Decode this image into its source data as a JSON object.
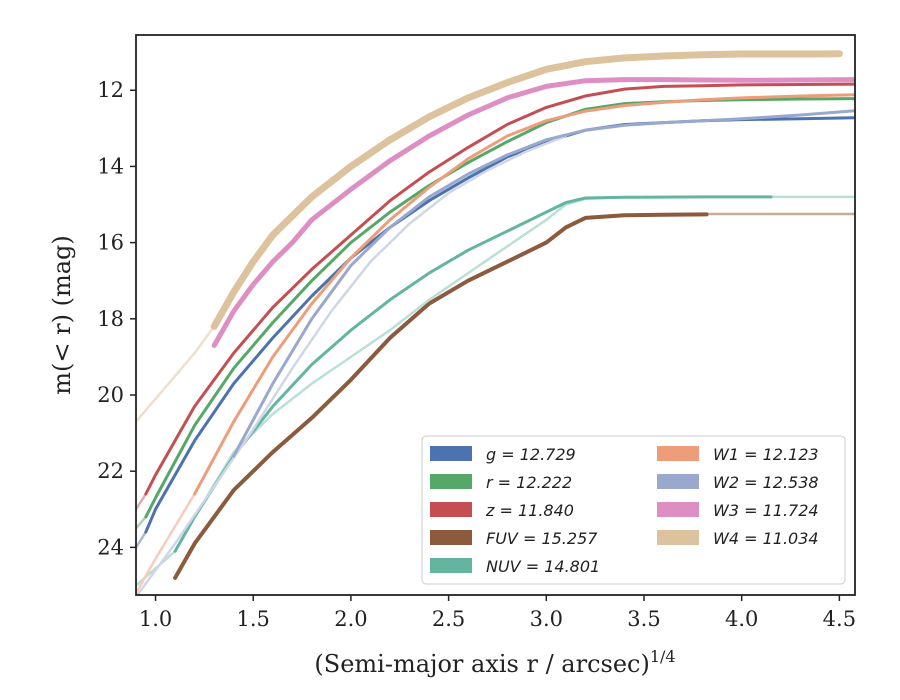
{
  "chart_data": {
    "type": "line",
    "xlabel": "(Semi-major axis r / arcsec)",
    "xlabel_sup": "1/4",
    "ylabel": "m(< r) (mag)",
    "xlim": [
      0.9,
      4.58
    ],
    "ylim": [
      25.25,
      10.55
    ],
    "y_inverted": true,
    "grid": false,
    "legend_placement": "lower-right",
    "x_ticks": [
      "1.0",
      "1.5",
      "2.0",
      "2.5",
      "3.0",
      "3.5",
      "4.0",
      "4.5"
    ],
    "y_ticks": [
      "12",
      "14",
      "16",
      "18",
      "20",
      "22",
      "24"
    ],
    "series": [
      {
        "name": "g = 12.729",
        "color": "#4c72b0",
        "faint_color": "#a9bad8",
        "width": 3,
        "faint": [
          [
            0.9,
            24.0
          ],
          [
            0.95,
            23.6
          ]
        ],
        "values": [
          [
            0.95,
            23.6
          ],
          [
            1.0,
            23.0
          ],
          [
            1.2,
            21.2
          ],
          [
            1.4,
            19.7
          ],
          [
            1.6,
            18.5
          ],
          [
            1.8,
            17.4
          ],
          [
            2.0,
            16.4
          ],
          [
            2.2,
            15.6
          ],
          [
            2.4,
            14.9
          ],
          [
            2.6,
            14.3
          ],
          [
            2.8,
            13.75
          ],
          [
            3.0,
            13.35
          ],
          [
            3.2,
            13.05
          ],
          [
            3.4,
            12.9
          ],
          [
            3.6,
            12.85
          ],
          [
            3.8,
            12.8
          ],
          [
            4.0,
            12.77
          ],
          [
            4.3,
            12.75
          ],
          [
            4.58,
            12.72
          ]
        ]
      },
      {
        "name": "r = 12.222",
        "color": "#55a868",
        "faint_color": "#aad4b4",
        "width": 3,
        "faint": [
          [
            0.9,
            23.5
          ],
          [
            0.95,
            23.2
          ]
        ],
        "values": [
          [
            0.95,
            23.2
          ],
          [
            1.0,
            22.7
          ],
          [
            1.2,
            20.8
          ],
          [
            1.4,
            19.3
          ],
          [
            1.6,
            18.1
          ],
          [
            1.8,
            17.0
          ],
          [
            2.0,
            16.0
          ],
          [
            2.2,
            15.2
          ],
          [
            2.4,
            14.5
          ],
          [
            2.6,
            13.9
          ],
          [
            2.8,
            13.35
          ],
          [
            3.0,
            12.85
          ],
          [
            3.2,
            12.5
          ],
          [
            3.4,
            12.35
          ],
          [
            3.6,
            12.3
          ],
          [
            3.8,
            12.27
          ],
          [
            4.0,
            12.25
          ],
          [
            4.3,
            12.23
          ],
          [
            4.58,
            12.22
          ]
        ]
      },
      {
        "name": "z = 11.840",
        "color": "#c44e52",
        "faint_color": "#e3a8aa",
        "width": 3,
        "faint": [
          [
            0.9,
            23.0
          ],
          [
            0.95,
            22.6
          ]
        ],
        "values": [
          [
            0.95,
            22.6
          ],
          [
            1.0,
            22.1
          ],
          [
            1.2,
            20.3
          ],
          [
            1.4,
            18.9
          ],
          [
            1.6,
            17.7
          ],
          [
            1.8,
            16.7
          ],
          [
            2.0,
            15.8
          ],
          [
            2.2,
            14.9
          ],
          [
            2.4,
            14.15
          ],
          [
            2.6,
            13.5
          ],
          [
            2.8,
            12.9
          ],
          [
            3.0,
            12.45
          ],
          [
            3.2,
            12.15
          ],
          [
            3.4,
            11.97
          ],
          [
            3.6,
            11.9
          ],
          [
            3.8,
            11.88
          ],
          [
            4.0,
            11.86
          ],
          [
            4.3,
            11.85
          ],
          [
            4.58,
            11.84
          ]
        ]
      },
      {
        "name": "FUV = 15.257",
        "color": "#8c5a3c",
        "faint_color": "#c9aa95",
        "width": 4,
        "faint": [
          [
            3.82,
            15.25
          ],
          [
            4.58,
            15.25
          ]
        ],
        "values": [
          [
            1.1,
            24.8
          ],
          [
            1.2,
            23.9
          ],
          [
            1.4,
            22.5
          ],
          [
            1.6,
            21.5
          ],
          [
            1.8,
            20.6
          ],
          [
            2.0,
            19.6
          ],
          [
            2.2,
            18.5
          ],
          [
            2.4,
            17.6
          ],
          [
            2.6,
            17.0
          ],
          [
            2.8,
            16.5
          ],
          [
            3.0,
            16.0
          ],
          [
            3.1,
            15.6
          ],
          [
            3.2,
            15.35
          ],
          [
            3.4,
            15.28
          ],
          [
            3.6,
            15.27
          ],
          [
            3.82,
            15.26
          ]
        ]
      },
      {
        "name": "NUV = 14.801",
        "color": "#64b5a0",
        "faint_color": "#b9e0d6",
        "width": 3,
        "faint": [
          [
            0.9,
            25.0
          ],
          [
            1.1,
            24.1
          ],
          [
            1.2,
            23.2
          ],
          [
            1.4,
            21.5
          ],
          [
            1.6,
            20.5
          ],
          [
            1.8,
            19.7
          ],
          [
            2.0,
            19.0
          ],
          [
            2.2,
            18.3
          ],
          [
            2.4,
            17.5
          ],
          [
            2.6,
            16.8
          ],
          [
            2.8,
            16.1
          ],
          [
            3.0,
            15.4
          ],
          [
            3.1,
            15.0
          ],
          [
            3.2,
            14.85
          ],
          [
            3.4,
            14.81
          ],
          [
            4.0,
            14.8
          ],
          [
            4.58,
            14.8
          ]
        ],
        "values": [
          [
            1.1,
            24.1
          ],
          [
            1.2,
            23.2
          ],
          [
            1.4,
            21.6
          ],
          [
            1.6,
            20.3
          ],
          [
            1.8,
            19.2
          ],
          [
            2.0,
            18.3
          ],
          [
            2.2,
            17.5
          ],
          [
            2.4,
            16.8
          ],
          [
            2.6,
            16.2
          ],
          [
            2.8,
            15.7
          ],
          [
            3.0,
            15.2
          ],
          [
            3.1,
            14.95
          ],
          [
            3.2,
            14.83
          ],
          [
            3.4,
            14.81
          ],
          [
            3.8,
            14.8
          ],
          [
            4.15,
            14.8
          ]
        ]
      },
      {
        "name": "W1 = 12.123",
        "color": "#ee9d7b",
        "faint_color": "#f6cdbb",
        "width": 3,
        "faint": [
          [
            0.9,
            25.2
          ],
          [
            1.0,
            24.3
          ],
          [
            1.2,
            22.6
          ]
        ],
        "values": [
          [
            1.2,
            22.6
          ],
          [
            1.4,
            20.7
          ],
          [
            1.6,
            19.0
          ],
          [
            1.8,
            17.6
          ],
          [
            2.0,
            16.4
          ],
          [
            2.2,
            15.4
          ],
          [
            2.4,
            14.55
          ],
          [
            2.6,
            13.8
          ],
          [
            2.8,
            13.2
          ],
          [
            3.0,
            12.8
          ],
          [
            3.2,
            12.55
          ],
          [
            3.4,
            12.4
          ],
          [
            3.6,
            12.32
          ],
          [
            3.8,
            12.25
          ],
          [
            4.0,
            12.2
          ],
          [
            4.3,
            12.15
          ],
          [
            4.58,
            12.12
          ]
        ]
      },
      {
        "name": "W2 = 12.538",
        "color": "#99a8cc",
        "faint_color": "#cfd6e8",
        "width": 3,
        "faint": [
          [
            0.9,
            25.3
          ],
          [
            1.1,
            23.9
          ],
          [
            1.3,
            22.4
          ],
          [
            1.5,
            20.9
          ],
          [
            1.7,
            19.3
          ],
          [
            1.9,
            17.8
          ],
          [
            2.1,
            16.5
          ],
          [
            2.3,
            15.5
          ],
          [
            2.5,
            14.7
          ],
          [
            2.7,
            14.1
          ],
          [
            2.9,
            13.6
          ],
          [
            3.1,
            13.2
          ]
        ],
        "values": [
          [
            1.4,
            21.6
          ],
          [
            1.6,
            19.7
          ],
          [
            1.8,
            18.0
          ],
          [
            2.0,
            16.6
          ],
          [
            2.2,
            15.6
          ],
          [
            2.4,
            14.8
          ],
          [
            2.6,
            14.2
          ],
          [
            2.8,
            13.7
          ],
          [
            3.0,
            13.3
          ],
          [
            3.2,
            13.05
          ],
          [
            3.4,
            12.92
          ],
          [
            3.6,
            12.85
          ],
          [
            3.8,
            12.8
          ],
          [
            4.0,
            12.75
          ],
          [
            4.3,
            12.65
          ],
          [
            4.58,
            12.54
          ]
        ]
      },
      {
        "name": "W3 = 11.724",
        "color": "#dd8fc3",
        "faint_color": "#efc7e1",
        "width": 5,
        "faint": [],
        "values": [
          [
            1.3,
            18.7
          ],
          [
            1.4,
            17.8
          ],
          [
            1.5,
            17.1
          ],
          [
            1.6,
            16.5
          ],
          [
            1.7,
            16.0
          ],
          [
            1.8,
            15.4
          ],
          [
            2.0,
            14.6
          ],
          [
            2.2,
            13.85
          ],
          [
            2.4,
            13.2
          ],
          [
            2.6,
            12.65
          ],
          [
            2.8,
            12.2
          ],
          [
            3.0,
            11.9
          ],
          [
            3.2,
            11.75
          ],
          [
            3.4,
            11.72
          ],
          [
            3.6,
            11.72
          ],
          [
            3.8,
            11.73
          ],
          [
            4.0,
            11.74
          ],
          [
            4.3,
            11.73
          ],
          [
            4.58,
            11.72
          ]
        ]
      },
      {
        "name": "W4 = 11.034",
        "color": "#dcc29d",
        "faint_color": "#eee0cc",
        "width": 7,
        "faint": [
          [
            0.9,
            20.7
          ],
          [
            1.0,
            20.1
          ],
          [
            1.1,
            19.5
          ],
          [
            1.2,
            18.9
          ],
          [
            1.3,
            18.2
          ]
        ],
        "values": [
          [
            1.3,
            18.2
          ],
          [
            1.4,
            17.3
          ],
          [
            1.5,
            16.5
          ],
          [
            1.6,
            15.8
          ],
          [
            1.8,
            14.8
          ],
          [
            2.0,
            14.0
          ],
          [
            2.2,
            13.3
          ],
          [
            2.4,
            12.7
          ],
          [
            2.6,
            12.2
          ],
          [
            2.8,
            11.8
          ],
          [
            3.0,
            11.45
          ],
          [
            3.2,
            11.25
          ],
          [
            3.4,
            11.15
          ],
          [
            3.6,
            11.1
          ],
          [
            3.8,
            11.07
          ],
          [
            4.0,
            11.05
          ],
          [
            4.2,
            11.05
          ],
          [
            4.4,
            11.05
          ],
          [
            4.5,
            11.04
          ]
        ]
      }
    ]
  }
}
